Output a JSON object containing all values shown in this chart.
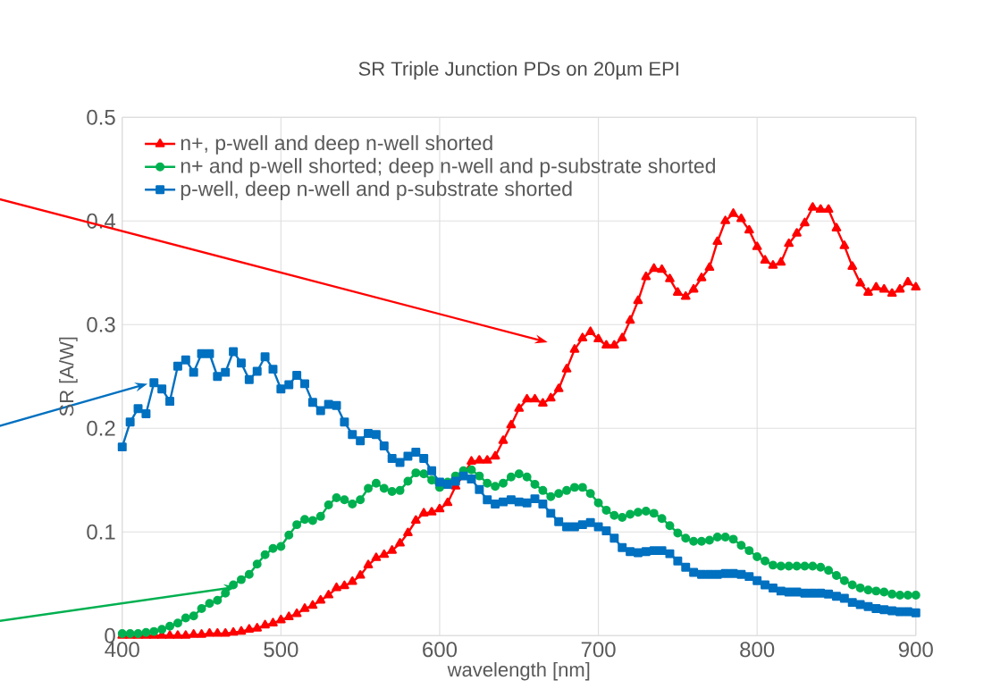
{
  "chart_data": {
    "type": "line",
    "title": "SR Triple Junction PDs on 20µm EPI",
    "xlabel": "wavelength [nm]",
    "ylabel": "SR [A/W]",
    "x": [
      400,
      405,
      410,
      415,
      420,
      425,
      430,
      435,
      440,
      445,
      450,
      455,
      460,
      465,
      470,
      475,
      480,
      485,
      490,
      495,
      500,
      505,
      510,
      515,
      520,
      525,
      530,
      535,
      540,
      545,
      550,
      555,
      560,
      565,
      570,
      575,
      580,
      585,
      590,
      595,
      600,
      605,
      610,
      615,
      620,
      625,
      630,
      635,
      640,
      645,
      650,
      655,
      660,
      665,
      670,
      675,
      680,
      685,
      690,
      695,
      700,
      705,
      710,
      715,
      720,
      725,
      730,
      735,
      740,
      745,
      750,
      755,
      760,
      765,
      770,
      775,
      780,
      785,
      790,
      795,
      800,
      805,
      810,
      815,
      820,
      825,
      830,
      835,
      840,
      845,
      850,
      855,
      860,
      865,
      870,
      875,
      880,
      885,
      890,
      895,
      900
    ],
    "series": [
      {
        "name": "n+, p-well and deep n-well shorted",
        "color": "#ff0000",
        "marker": "triangle",
        "values": [
          0,
          0,
          0,
          0,
          0,
          0,
          0,
          0,
          0,
          0.001,
          0.001,
          0.002,
          0.002,
          0.002,
          0.003,
          0.004,
          0.006,
          0.007,
          0.01,
          0.012,
          0.015,
          0.018,
          0.021,
          0.026,
          0.029,
          0.034,
          0.039,
          0.046,
          0.048,
          0.052,
          0.058,
          0.068,
          0.075,
          0.078,
          0.082,
          0.089,
          0.099,
          0.111,
          0.118,
          0.119,
          0.122,
          0.128,
          0.144,
          0.155,
          0.168,
          0.169,
          0.169,
          0.173,
          0.188,
          0.203,
          0.219,
          0.228,
          0.228,
          0.224,
          0.229,
          0.238,
          0.257,
          0.276,
          0.287,
          0.293,
          0.286,
          0.28,
          0.28,
          0.287,
          0.304,
          0.323,
          0.346,
          0.354,
          0.353,
          0.344,
          0.331,
          0.327,
          0.334,
          0.345,
          0.355,
          0.38,
          0.4,
          0.407,
          0.402,
          0.391,
          0.375,
          0.362,
          0.357,
          0.36,
          0.378,
          0.388,
          0.398,
          0.413,
          0.411,
          0.411,
          0.393,
          0.376,
          0.356,
          0.34,
          0.331,
          0.336,
          0.334,
          0.33,
          0.334,
          0.341,
          0.336
        ]
      },
      {
        "name": "n+ and p-well shorted; deep n-well and p-substrate shorted",
        "color": "#00b050",
        "marker": "circle",
        "values": [
          0.002,
          0.002,
          0.002,
          0.003,
          0.004,
          0.006,
          0.009,
          0.012,
          0.017,
          0.019,
          0.026,
          0.031,
          0.034,
          0.041,
          0.049,
          0.054,
          0.059,
          0.069,
          0.078,
          0.084,
          0.086,
          0.097,
          0.107,
          0.112,
          0.111,
          0.115,
          0.126,
          0.133,
          0.131,
          0.127,
          0.131,
          0.142,
          0.147,
          0.142,
          0.139,
          0.14,
          0.149,
          0.157,
          0.156,
          0.15,
          0.143,
          0.148,
          0.154,
          0.159,
          0.16,
          0.154,
          0.147,
          0.144,
          0.147,
          0.153,
          0.156,
          0.153,
          0.146,
          0.14,
          0.134,
          0.137,
          0.14,
          0.143,
          0.143,
          0.137,
          0.128,
          0.121,
          0.116,
          0.114,
          0.117,
          0.119,
          0.12,
          0.118,
          0.113,
          0.106,
          0.099,
          0.094,
          0.091,
          0.091,
          0.092,
          0.095,
          0.095,
          0.093,
          0.087,
          0.082,
          0.076,
          0.072,
          0.068,
          0.067,
          0.067,
          0.067,
          0.067,
          0.067,
          0.066,
          0.063,
          0.058,
          0.053,
          0.049,
          0.046,
          0.044,
          0.043,
          0.042,
          0.04,
          0.039,
          0.039,
          0.039
        ]
      },
      {
        "name": "p-well, deep n-well and p-substrate shorted",
        "color": "#0070c0",
        "marker": "square",
        "values": [
          0.182,
          0.206,
          0.219,
          0.214,
          0.244,
          0.238,
          0.226,
          0.26,
          0.266,
          0.254,
          0.272,
          0.272,
          0.25,
          0.254,
          0.274,
          0.263,
          0.247,
          0.255,
          0.269,
          0.257,
          0.238,
          0.242,
          0.251,
          0.243,
          0.225,
          0.217,
          0.223,
          0.222,
          0.206,
          0.194,
          0.188,
          0.195,
          0.194,
          0.183,
          0.171,
          0.167,
          0.173,
          0.177,
          0.171,
          0.159,
          0.148,
          0.146,
          0.149,
          0.154,
          0.151,
          0.141,
          0.131,
          0.127,
          0.129,
          0.131,
          0.129,
          0.128,
          0.132,
          0.127,
          0.118,
          0.11,
          0.105,
          0.105,
          0.107,
          0.109,
          0.105,
          0.101,
          0.094,
          0.085,
          0.081,
          0.08,
          0.081,
          0.082,
          0.082,
          0.079,
          0.072,
          0.066,
          0.061,
          0.059,
          0.059,
          0.059,
          0.06,
          0.06,
          0.059,
          0.057,
          0.053,
          0.049,
          0.046,
          0.043,
          0.042,
          0.042,
          0.041,
          0.041,
          0.041,
          0.04,
          0.038,
          0.036,
          0.032,
          0.03,
          0.028,
          0.026,
          0.025,
          0.024,
          0.023,
          0.023,
          0.022
        ]
      }
    ],
    "xlim": [
      400,
      900
    ],
    "ylim": [
      0,
      0.5
    ],
    "xticks": [
      400,
      500,
      600,
      700,
      800,
      900
    ],
    "yticks": [
      0,
      0.1,
      0.2,
      0.3,
      0.4,
      0.5
    ],
    "grid": true,
    "legend": "top left",
    "line_style": "solid"
  }
}
